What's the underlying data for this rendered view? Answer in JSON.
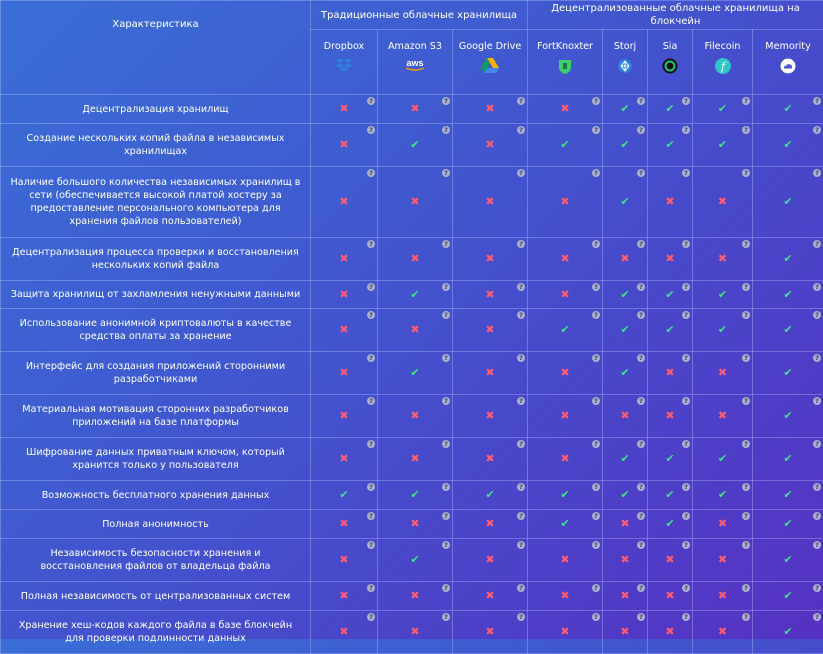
{
  "header": {
    "feature_label": "Характеристика",
    "groups": [
      "Традиционные облачные хранилища",
      "Децентрализованные облачные хранилища на блокчейн"
    ]
  },
  "providers": [
    {
      "name": "Dropbox",
      "icon": "dropbox-icon",
      "color": "#2d7fe0"
    },
    {
      "name": "Amazon S3",
      "icon": "aws-icon",
      "color": "#ffffff"
    },
    {
      "name": "Google Drive",
      "icon": "google-drive-icon",
      "color": "#f4b400"
    },
    {
      "name": "FortKnoxter",
      "icon": "fortknoxter-icon",
      "color": "#3ecf6b"
    },
    {
      "name": "Storj",
      "icon": "storj-icon",
      "color": "#2d7fe0"
    },
    {
      "name": "Sia",
      "icon": "sia-icon",
      "color": "#20c27a"
    },
    {
      "name": "Filecoin",
      "icon": "filecoin-icon",
      "color": "#2ec4c8"
    },
    {
      "name": "Memority",
      "icon": "memority-icon",
      "color": "#ffffff"
    }
  ],
  "help_glyph": "?",
  "check_glyph": "✔",
  "cross_glyph": "✖",
  "rows": [
    {
      "feature": "Децентрализация хранилищ",
      "values": [
        0,
        0,
        0,
        0,
        1,
        1,
        1,
        1
      ]
    },
    {
      "feature": "Создание нескольких копий файла в независимых хранилищах",
      "values": [
        0,
        1,
        0,
        1,
        1,
        1,
        1,
        1
      ]
    },
    {
      "feature": "Наличие большого количества независимых хранилищ в сети (обеспечивается высокой платой хостеру за предоставление персонального компьютера для хранения файлов пользователей)",
      "values": [
        0,
        0,
        0,
        0,
        1,
        0,
        0,
        1
      ]
    },
    {
      "feature": "Децентрализация процесса проверки и восстановления нескольких копий файла",
      "values": [
        0,
        0,
        0,
        0,
        0,
        0,
        0,
        1
      ]
    },
    {
      "feature": "Защита хранилищ от захламления ненужными данными",
      "values": [
        0,
        1,
        0,
        0,
        1,
        1,
        1,
        1
      ]
    },
    {
      "feature": "Использование анонимной криптовалюты в качестве средства оплаты за хранение",
      "values": [
        0,
        0,
        0,
        1,
        1,
        1,
        1,
        1
      ]
    },
    {
      "feature": "Интерфейс для создания приложений сторонними разработчиками",
      "values": [
        0,
        1,
        0,
        0,
        1,
        0,
        0,
        1
      ]
    },
    {
      "feature": "Материальная мотивация сторонних разработчиков приложений на базе платформы",
      "values": [
        0,
        0,
        0,
        0,
        0,
        0,
        0,
        1
      ]
    },
    {
      "feature": "Шифрование данных приватным ключом, который хранится только у пользователя",
      "values": [
        0,
        0,
        0,
        0,
        1,
        1,
        1,
        1
      ]
    },
    {
      "feature": "Возможность бесплатного хранения данных",
      "values": [
        1,
        1,
        1,
        1,
        1,
        1,
        1,
        1
      ]
    },
    {
      "feature": "Полная анонимность",
      "values": [
        0,
        0,
        0,
        1,
        0,
        1,
        0,
        1
      ]
    },
    {
      "feature": "Независимость безопасности хранения и восстановления файлов от владельца файла",
      "values": [
        0,
        1,
        0,
        0,
        0,
        0,
        0,
        1
      ]
    },
    {
      "feature": "Полная независимость от централизованных систем",
      "values": [
        0,
        0,
        0,
        0,
        0,
        0,
        0,
        1
      ]
    },
    {
      "feature": "Хранение хеш-кодов каждого файла в базе блокчейн для проверки подлинности данных",
      "values": [
        0,
        0,
        0,
        0,
        0,
        0,
        0,
        1
      ]
    }
  ]
}
